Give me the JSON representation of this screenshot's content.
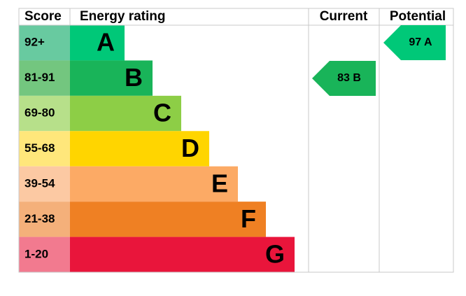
{
  "header": {
    "score": "Score",
    "rating": "Energy rating",
    "current": "Current",
    "potential": "Potential"
  },
  "bands": [
    {
      "score": "92+",
      "letter": "A"
    },
    {
      "score": "81-91",
      "letter": "B"
    },
    {
      "score": "69-80",
      "letter": "C"
    },
    {
      "score": "55-68",
      "letter": "D"
    },
    {
      "score": "39-54",
      "letter": "E"
    },
    {
      "score": "21-38",
      "letter": "F"
    },
    {
      "score": "1-20",
      "letter": "G"
    }
  ],
  "current": "83 B",
  "potential": "97 A"
}
